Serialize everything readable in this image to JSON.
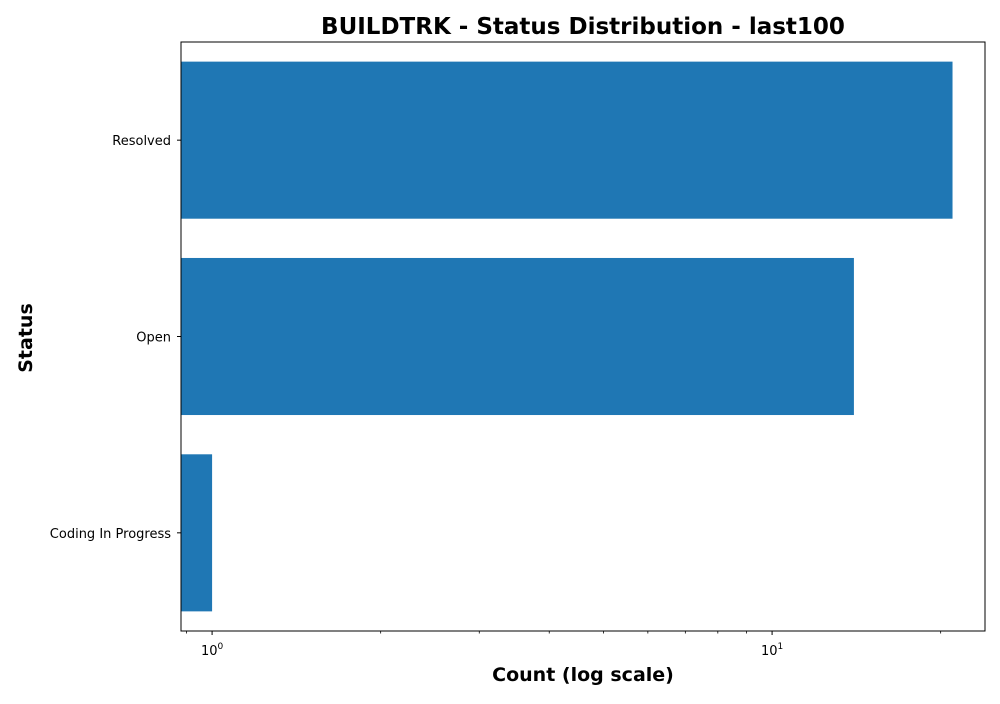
{
  "chart_data": {
    "type": "bar",
    "orientation": "horizontal",
    "title": "BUILDTRK - Status Distribution - last100",
    "xlabel": "Count (log scale)",
    "ylabel": "Status",
    "x_scale": "log",
    "xlim": [
      0.88,
      24
    ],
    "x_ticks": [
      {
        "base": "10",
        "exp": "0",
        "value": 1
      },
      {
        "base": "10",
        "exp": "1",
        "value": 10
      }
    ],
    "categories": [
      "Resolved",
      "Open",
      "Coding In Progress"
    ],
    "values": [
      21,
      14,
      1
    ],
    "bar_color": "#1f77b4",
    "grid": false,
    "legend": "none"
  }
}
